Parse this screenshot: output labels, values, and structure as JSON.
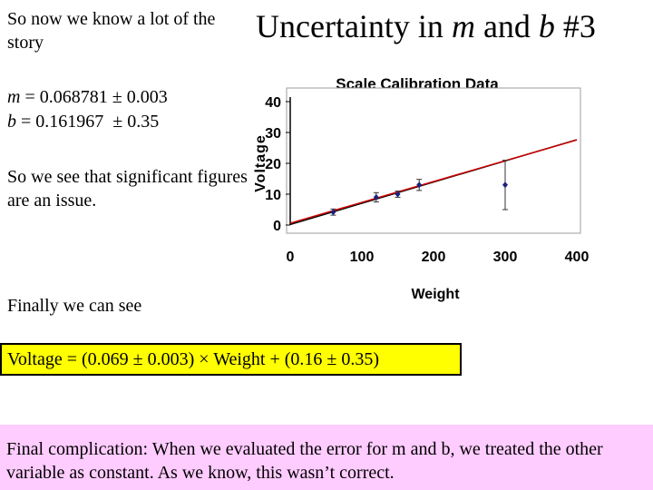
{
  "text": {
    "intro": "So now we know a lot of the story",
    "title_prefix": "Uncertainty in ",
    "title_m": "m",
    "title_mid": " and ",
    "title_b": "b",
    "title_suffix": " #3",
    "m_var": "m",
    "m_rest": " = 0.068781 ± 0.003",
    "b_var": "b",
    "b_rest": " = 0.161967  ± 0.35",
    "sigfig": "So we see that significant figures are an issue.",
    "finally": "Finally we can see",
    "result": "Voltage = (0.069 ± 0.003) × Weight + (0.16 ± 0.35)",
    "complication": "Final complication:  When we evaluated the error for m and b, we treated the other variable as constant.  As we know, this wasn’t correct."
  },
  "colors": {
    "result_bg": "#ffff00",
    "complication_bg": "#ffccff",
    "point_color": "#1a237e",
    "fit_line_black": "#000000",
    "fit_line_red": "#cc0000"
  },
  "chart_data": {
    "type": "scatter",
    "title": "Scale Calibration Data",
    "xlabel": "Weight",
    "ylabel": "Voltage",
    "xlim": [
      0,
      400
    ],
    "ylim": [
      0,
      40
    ],
    "xticks": [
      0,
      100,
      200,
      300,
      400
    ],
    "yticks": [
      0,
      10,
      20,
      30,
      40
    ],
    "grid": false,
    "points": [
      {
        "x": 60,
        "y": 4.2,
        "err": 1.0
      },
      {
        "x": 120,
        "y": 9.0,
        "err": 1.5
      },
      {
        "x": 150,
        "y": 10.0,
        "err": 1.0
      },
      {
        "x": 180,
        "y": 13.0,
        "err": 1.8
      },
      {
        "x": 300,
        "y": 13.0,
        "err": 8.0
      }
    ],
    "lines": [
      {
        "color": "#000000",
        "slope": 0.068781,
        "intercept": 0.161967
      },
      {
        "color": "#cc0000",
        "slope": 0.0675,
        "intercept": 0.6
      }
    ]
  }
}
